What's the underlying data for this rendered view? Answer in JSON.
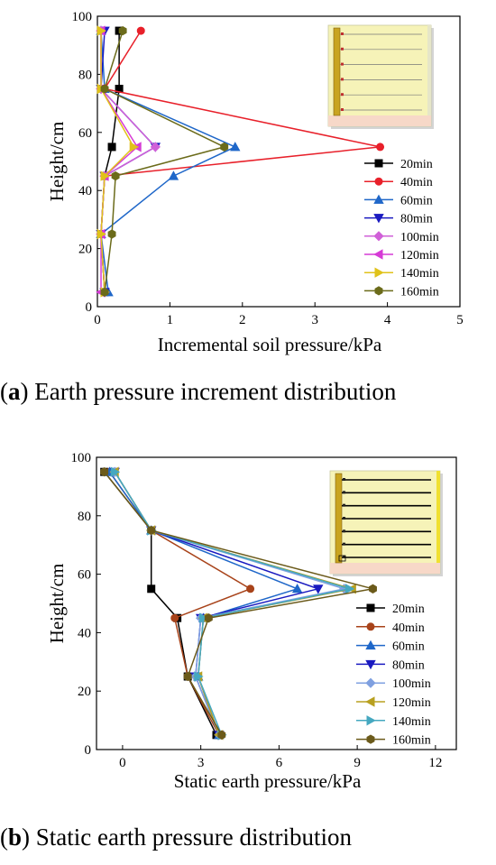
{
  "chart_data": [
    {
      "type": "line",
      "xlabel": "Incremental soil pressure/kPa",
      "ylabel": "Height/cm",
      "xlim": [
        0,
        5
      ],
      "ylim": [
        0,
        100
      ],
      "xticks": [
        0,
        1,
        2,
        3,
        4,
        5
      ],
      "yticks": [
        0,
        20,
        40,
        60,
        80,
        100
      ],
      "grid": false,
      "legend_position": "right-lower",
      "series": [
        {
          "name": "20min",
          "color": "#000000",
          "marker": "square",
          "points": [
            [
              0.3,
              95
            ],
            [
              0.3,
              75
            ],
            [
              0.2,
              55
            ],
            [
              0.1,
              45
            ],
            [
              0.05,
              25
            ],
            [
              0.1,
              5
            ]
          ]
        },
        {
          "name": "40min",
          "color": "#e8202a",
          "marker": "circle",
          "points": [
            [
              0.6,
              95
            ],
            [
              0.1,
              75
            ],
            [
              3.9,
              55
            ],
            [
              0.1,
              45
            ],
            [
              0.05,
              25
            ],
            [
              0.1,
              5
            ]
          ]
        },
        {
          "name": "60min",
          "color": "#1f67c9",
          "marker": "triangle-up",
          "points": [
            [
              0.05,
              95
            ],
            [
              0.1,
              75
            ],
            [
              1.9,
              55
            ],
            [
              1.05,
              45
            ],
            [
              0.05,
              25
            ],
            [
              0.15,
              5
            ]
          ]
        },
        {
          "name": "80min",
          "color": "#1a1ac0",
          "marker": "triangle-down",
          "points": [
            [
              0.1,
              95
            ],
            [
              0.05,
              75
            ],
            [
              0.8,
              55
            ],
            [
              0.1,
              45
            ],
            [
              0.05,
              25
            ],
            [
              0.1,
              5
            ]
          ]
        },
        {
          "name": "100min",
          "color": "#d060d8",
          "marker": "diamond",
          "points": [
            [
              0.05,
              95
            ],
            [
              0.05,
              75
            ],
            [
              0.8,
              55
            ],
            [
              0.1,
              45
            ],
            [
              0.05,
              25
            ],
            [
              0.1,
              5
            ]
          ]
        },
        {
          "name": "120min",
          "color": "#d63bd6",
          "marker": "triangle-left",
          "points": [
            [
              0.05,
              95
            ],
            [
              0.05,
              75
            ],
            [
              0.55,
              55
            ],
            [
              0.1,
              45
            ],
            [
              0.05,
              25
            ],
            [
              0.05,
              5
            ]
          ]
        },
        {
          "name": "140min",
          "color": "#e0c21a",
          "marker": "triangle-right",
          "points": [
            [
              0.05,
              95
            ],
            [
              0.05,
              75
            ],
            [
              0.5,
              55
            ],
            [
              0.1,
              45
            ],
            [
              0.05,
              25
            ],
            [
              0.1,
              5
            ]
          ]
        },
        {
          "name": "160min",
          "color": "#6b6b1a",
          "marker": "hexagon",
          "points": [
            [
              0.35,
              95
            ],
            [
              0.1,
              75
            ],
            [
              1.75,
              55
            ],
            [
              0.25,
              45
            ],
            [
              0.2,
              25
            ],
            [
              0.1,
              5
            ]
          ]
        }
      ]
    },
    {
      "type": "line",
      "xlabel": "Static earth pressure/kPa",
      "ylabel": "Height/cm",
      "xlim": [
        -1,
        12.8
      ],
      "ylim": [
        0,
        100
      ],
      "xticks": [
        0,
        3,
        6,
        9,
        12
      ],
      "yticks": [
        0,
        20,
        40,
        60,
        80,
        100
      ],
      "grid": false,
      "legend_position": "right-lower",
      "series": [
        {
          "name": "20min",
          "color": "#000000",
          "marker": "square",
          "points": [
            [
              -0.7,
              95
            ],
            [
              1.1,
              75
            ],
            [
              1.1,
              55
            ],
            [
              2.1,
              45
            ],
            [
              2.5,
              25
            ],
            [
              3.6,
              5
            ]
          ]
        },
        {
          "name": "40min",
          "color": "#a8431a",
          "marker": "circle",
          "points": [
            [
              -0.5,
              95
            ],
            [
              1.1,
              75
            ],
            [
              4.9,
              55
            ],
            [
              2.0,
              45
            ],
            [
              2.5,
              25
            ],
            [
              3.7,
              5
            ]
          ]
        },
        {
          "name": "60min",
          "color": "#1f67c9",
          "marker": "triangle-up",
          "points": [
            [
              -0.5,
              95
            ],
            [
              1.1,
              75
            ],
            [
              6.7,
              55
            ],
            [
              3.1,
              45
            ],
            [
              2.9,
              25
            ],
            [
              3.7,
              5
            ]
          ]
        },
        {
          "name": "80min",
          "color": "#1a1ac0",
          "marker": "triangle-down",
          "points": [
            [
              -0.3,
              95
            ],
            [
              1.1,
              75
            ],
            [
              7.5,
              55
            ],
            [
              3.0,
              45
            ],
            [
              2.8,
              25
            ],
            [
              3.7,
              5
            ]
          ]
        },
        {
          "name": "100min",
          "color": "#7fa0e0",
          "marker": "diamond",
          "points": [
            [
              -0.3,
              95
            ],
            [
              1.1,
              75
            ],
            [
              8.5,
              55
            ],
            [
              3.0,
              45
            ],
            [
              2.8,
              25
            ],
            [
              3.7,
              5
            ]
          ]
        },
        {
          "name": "120min",
          "color": "#b8a020",
          "marker": "triangle-left",
          "points": [
            [
              -0.3,
              95
            ],
            [
              1.1,
              75
            ],
            [
              8.8,
              55
            ],
            [
              3.1,
              45
            ],
            [
              2.9,
              25
            ],
            [
              3.7,
              5
            ]
          ]
        },
        {
          "name": "140min",
          "color": "#45a8c0",
          "marker": "triangle-right",
          "points": [
            [
              -0.3,
              95
            ],
            [
              1.1,
              75
            ],
            [
              8.7,
              55
            ],
            [
              3.1,
              45
            ],
            [
              2.9,
              25
            ],
            [
              3.8,
              5
            ]
          ]
        },
        {
          "name": "160min",
          "color": "#6b5a1a",
          "marker": "hexagon",
          "points": [
            [
              -0.7,
              95
            ],
            [
              1.1,
              75
            ],
            [
              9.6,
              55
            ],
            [
              3.3,
              45
            ],
            [
              2.5,
              25
            ],
            [
              3.8,
              5
            ]
          ]
        }
      ]
    }
  ],
  "captions": [
    {
      "letter": "a",
      "text": "Earth pressure increment distribution"
    },
    {
      "letter": "b",
      "text": "Static earth pressure distribution"
    }
  ]
}
